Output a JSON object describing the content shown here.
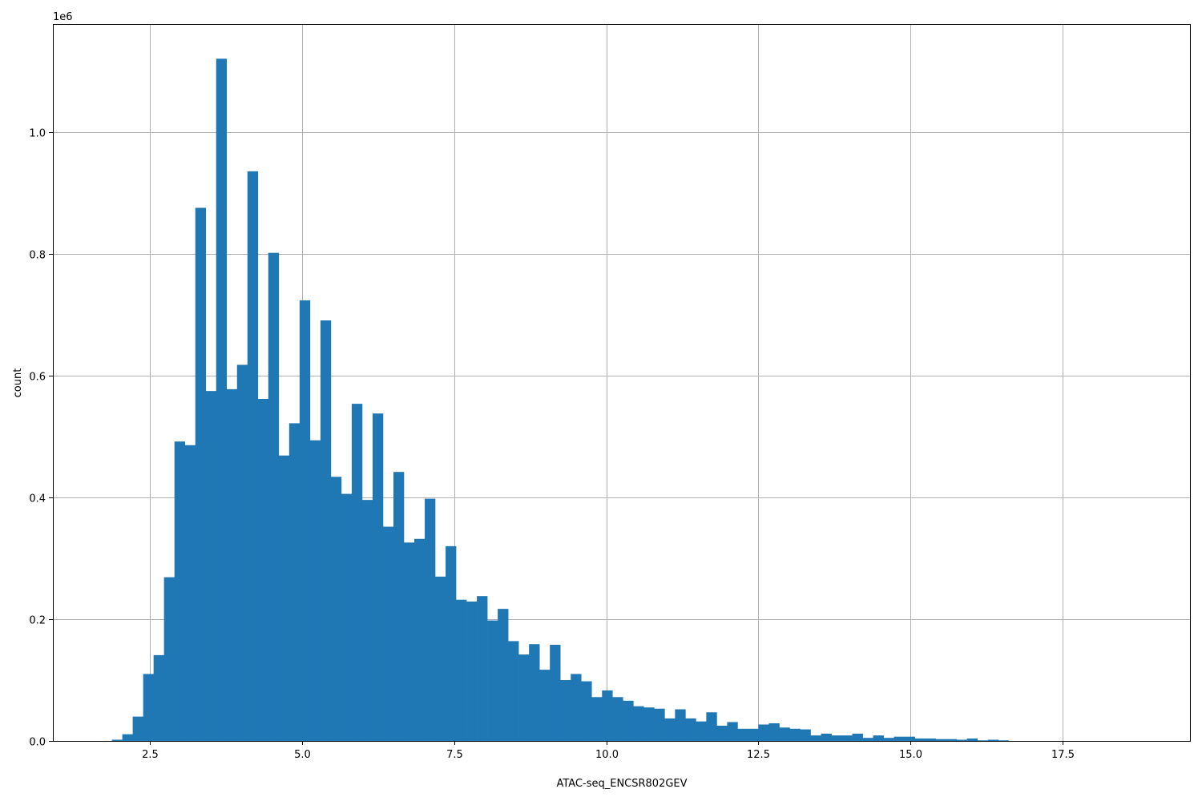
{
  "chart_data": {
    "type": "bar",
    "title": "",
    "xlabel": "ATAC-seq_ENCSR802GEV",
    "ylabel": "count",
    "y_offset_label": "1e6",
    "xlim": [
      0.9,
      19.6
    ],
    "ylim": [
      0,
      1.178
    ],
    "y_scale_note": "values in units of 1e6",
    "grid": true,
    "bar_color": "#1f77b4",
    "bin_start": 1.87,
    "bin_width": 0.1715,
    "x_ticks": [
      2.5,
      5.0,
      7.5,
      10.0,
      12.5,
      15.0,
      17.5
    ],
    "x_tick_labels": [
      "2.5",
      "5.0",
      "7.5",
      "10.0",
      "12.5",
      "15.0",
      "17.5"
    ],
    "y_ticks": [
      0.0,
      0.2,
      0.4,
      0.6,
      0.8,
      1.0
    ],
    "y_tick_labels": [
      "0.0",
      "0.2",
      "0.4",
      "0.6",
      "0.8",
      "1.0"
    ],
    "values": [
      0.002,
      0.011,
      0.04,
      0.11,
      0.141,
      0.269,
      0.492,
      0.486,
      0.876,
      0.575,
      1.121,
      0.578,
      0.618,
      0.936,
      0.562,
      0.802,
      0.469,
      0.522,
      0.724,
      0.494,
      0.691,
      0.434,
      0.406,
      0.554,
      0.396,
      0.538,
      0.352,
      0.442,
      0.326,
      0.332,
      0.398,
      0.27,
      0.32,
      0.232,
      0.229,
      0.238,
      0.198,
      0.217,
      0.164,
      0.142,
      0.159,
      0.117,
      0.158,
      0.1,
      0.11,
      0.098,
      0.072,
      0.083,
      0.072,
      0.066,
      0.057,
      0.055,
      0.053,
      0.037,
      0.052,
      0.037,
      0.032,
      0.047,
      0.025,
      0.031,
      0.02,
      0.02,
      0.027,
      0.029,
      0.022,
      0.02,
      0.019,
      0.009,
      0.012,
      0.009,
      0.009,
      0.012,
      0.005,
      0.009,
      0.005,
      0.007,
      0.007,
      0.004,
      0.004,
      0.003,
      0.003,
      0.002,
      0.004,
      0.001,
      0.002,
      0.001
    ]
  }
}
